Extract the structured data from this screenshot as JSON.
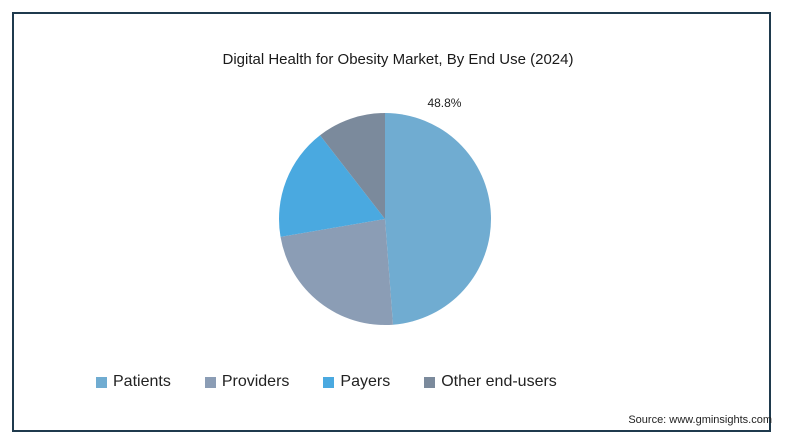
{
  "chart_data": {
    "type": "pie",
    "title": "Digital Health for Obesity Market, By End Use (2024)",
    "slices": [
      {
        "label": "Patients",
        "value": 48.8,
        "color": "#70acd1",
        "data_label": "48.8%"
      },
      {
        "label": "Providers",
        "value": 23.5,
        "color": "#8b9db5",
        "data_label": ""
      },
      {
        "label": "Payers",
        "value": 17.2,
        "color": "#4aa9e0",
        "data_label": ""
      },
      {
        "label": "Other end-users",
        "value": 10.5,
        "color": "#7b8a9c",
        "data_label": ""
      }
    ],
    "legend_position": "bottom"
  },
  "source": "Source: www.gminsights.com"
}
